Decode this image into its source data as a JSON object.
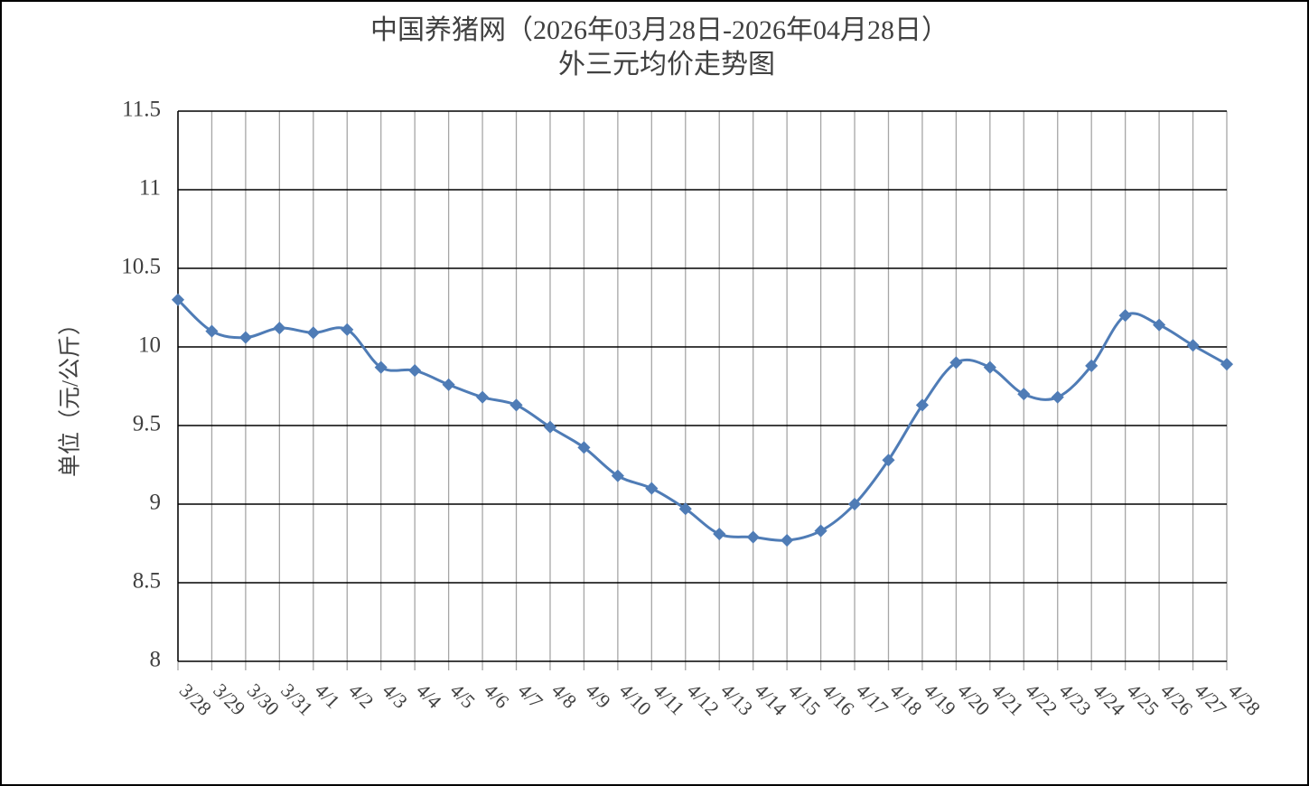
{
  "chart_data": {
    "type": "line",
    "title": "中国养猪网（2026年03月28日-2026年04月28日）",
    "subtitle": "外三元均价走势图",
    "y_label": "单位（元/公斤）",
    "categories": [
      "3/28",
      "3/29",
      "3/30",
      "3/31",
      "4/1",
      "4/2",
      "4/3",
      "4/4",
      "4/5",
      "4/6",
      "4/7",
      "4/8",
      "4/9",
      "4/10",
      "4/11",
      "4/12",
      "4/13",
      "4/14",
      "4/15",
      "4/16",
      "4/17",
      "4/18",
      "4/19",
      "4/20",
      "4/21",
      "4/22",
      "4/23",
      "4/24",
      "4/25",
      "4/26",
      "4/27",
      "4/28"
    ],
    "series": [
      {
        "color": "#4f7cb6",
        "values": [
          10.3,
          10.1,
          10.06,
          10.12,
          10.09,
          10.11,
          9.87,
          9.85,
          9.76,
          9.68,
          9.63,
          9.49,
          9.36,
          9.18,
          9.1,
          8.97,
          8.81,
          8.79,
          8.77,
          8.83,
          9.0,
          9.28,
          9.63,
          9.9,
          9.87,
          9.7,
          9.68,
          9.88,
          10.2,
          10.14,
          10.01,
          9.89
        ]
      }
    ],
    "ylim": [
      8,
      11.5
    ],
    "yticks": [
      8,
      8.5,
      9,
      9.5,
      10,
      10.5,
      11,
      11.5
    ],
    "grid": true
  }
}
